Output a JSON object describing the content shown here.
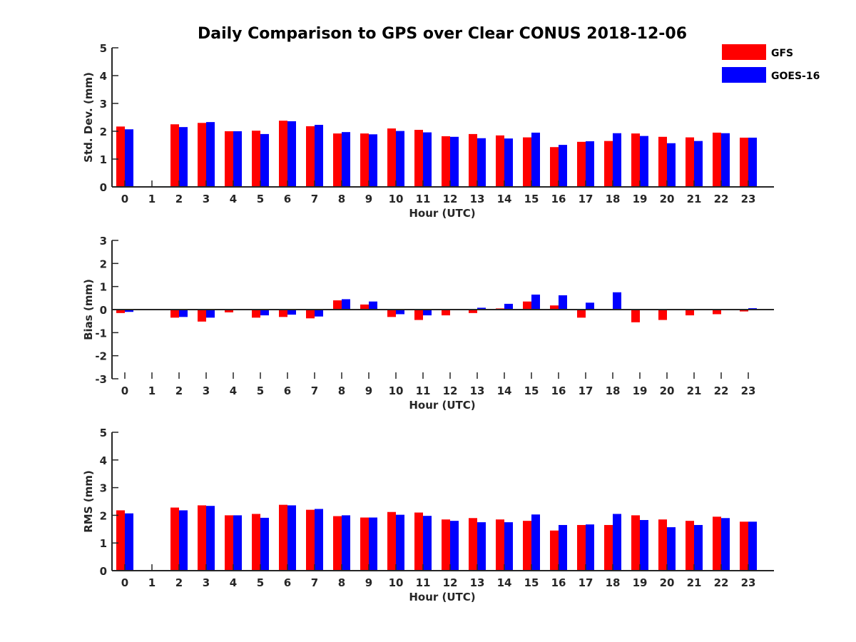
{
  "chart_data": {
    "type": "bar",
    "title": "Daily Comparison to GPS over Clear CONUS 2018-12-06",
    "colors": {
      "GFS": "#ff0000",
      "GOES-16": "#0000ff"
    },
    "legend": {
      "placement": "top-right",
      "entries": [
        "GFS",
        "GOES-16"
      ]
    },
    "panels": [
      {
        "id": "std",
        "xlabel": "Hour (UTC)",
        "ylabel": "Std. Dev. (mm)",
        "ylim": [
          0,
          5
        ],
        "yticks": [
          "0",
          "1",
          "2",
          "3",
          "4",
          "5"
        ],
        "categories": [
          "0",
          "1",
          "2",
          "3",
          "4",
          "5",
          "6",
          "7",
          "8",
          "9",
          "10",
          "11",
          "12",
          "13",
          "14",
          "15",
          "16",
          "17",
          "18",
          "19",
          "20",
          "21",
          "22",
          "23"
        ],
        "series": [
          {
            "name": "GFS",
            "values": [
              2.17,
              null,
              2.25,
              2.3,
              2.0,
              2.02,
              2.38,
              2.18,
              1.92,
              1.92,
              2.1,
              2.05,
              1.82,
              1.9,
              1.85,
              1.78,
              1.43,
              1.62,
              1.65,
              1.92,
              1.8,
              1.78,
              1.95,
              1.77
            ]
          },
          {
            "name": "GOES-16",
            "values": [
              2.07,
              null,
              2.15,
              2.33,
              2.0,
              1.9,
              2.36,
              2.23,
              1.97,
              1.89,
              2.01,
              1.96,
              1.8,
              1.75,
              1.74,
              1.95,
              1.51,
              1.64,
              1.93,
              1.83,
              1.57,
              1.65,
              1.93,
              1.77
            ]
          }
        ]
      },
      {
        "id": "bias",
        "xlabel": "Hour (UTC)",
        "ylabel": "Bias (mm)",
        "ylim": [
          -3,
          3
        ],
        "yticks": [
          "-3",
          "-2",
          "-1",
          "0",
          "1",
          "2",
          "3"
        ],
        "categories": [
          "0",
          "1",
          "2",
          "3",
          "4",
          "5",
          "6",
          "7",
          "8",
          "9",
          "10",
          "11",
          "12",
          "13",
          "14",
          "15",
          "16",
          "17",
          "18",
          "19",
          "20",
          "21",
          "22",
          "23"
        ],
        "series": [
          {
            "name": "GFS",
            "values": [
              -0.15,
              null,
              -0.35,
              -0.52,
              -0.12,
              -0.35,
              -0.32,
              -0.38,
              0.4,
              0.22,
              -0.32,
              -0.45,
              -0.25,
              -0.15,
              0.05,
              0.35,
              0.18,
              -0.35,
              0.0,
              -0.55,
              -0.45,
              -0.25,
              -0.2,
              -0.08
            ]
          },
          {
            "name": "GOES-16",
            "values": [
              -0.1,
              null,
              -0.32,
              -0.35,
              -0.02,
              -0.25,
              -0.22,
              -0.3,
              0.45,
              0.35,
              -0.2,
              -0.25,
              -0.02,
              0.08,
              0.25,
              0.65,
              0.62,
              0.3,
              0.75,
              -0.02,
              0.02,
              0.02,
              -0.02,
              0.06
            ]
          }
        ]
      },
      {
        "id": "rms",
        "xlabel": "Hour (UTC)",
        "ylabel": "RMS (mm)",
        "ylim": [
          0,
          5
        ],
        "yticks": [
          "0",
          "1",
          "2",
          "3",
          "4",
          "5"
        ],
        "categories": [
          "0",
          "1",
          "2",
          "3",
          "4",
          "5",
          "6",
          "7",
          "8",
          "9",
          "10",
          "11",
          "12",
          "13",
          "14",
          "15",
          "16",
          "17",
          "18",
          "19",
          "20",
          "21",
          "22",
          "23"
        ],
        "series": [
          {
            "name": "GFS",
            "values": [
              2.18,
              null,
              2.28,
              2.36,
              2.0,
              2.05,
              2.38,
              2.2,
              1.97,
              1.92,
              2.12,
              2.1,
              1.85,
              1.9,
              1.85,
              1.8,
              1.45,
              1.65,
              1.65,
              2.0,
              1.85,
              1.8,
              1.95,
              1.77
            ]
          },
          {
            "name": "GOES-16",
            "values": [
              2.07,
              null,
              2.18,
              2.34,
              2.0,
              1.91,
              2.36,
              2.23,
              2.0,
              1.92,
              2.02,
              1.98,
              1.8,
              1.75,
              1.75,
              2.03,
              1.65,
              1.67,
              2.05,
              1.83,
              1.57,
              1.65,
              1.9,
              1.77
            ]
          }
        ]
      }
    ]
  }
}
